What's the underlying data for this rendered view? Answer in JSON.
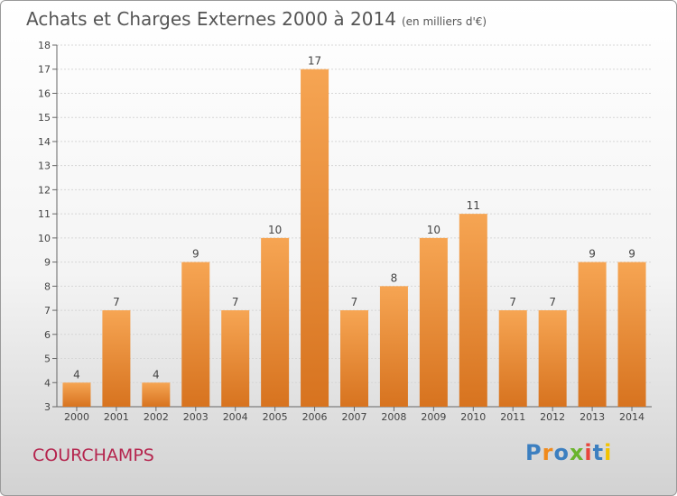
{
  "header": {
    "title": "Achats et Charges Externes 2000 à 2014",
    "subtitle": "(en milliers d'€)"
  },
  "footer": {
    "commune": "COURCHAMPS",
    "logo_letters": [
      "P",
      "r",
      "o",
      "x",
      "i",
      "t",
      "i"
    ]
  },
  "colors": {
    "bar_top": "#f6a553",
    "bar_bottom": "#d7731f",
    "commune": "#b5254e",
    "logo": [
      "#3c7fc0",
      "#f08a1c",
      "#3c7fc0",
      "#6ab42d",
      "#e8453c",
      "#3c7fc0",
      "#f2c300"
    ]
  },
  "chart_data": {
    "type": "bar",
    "title": "Achats et Charges Externes 2000 à 2014",
    "subtitle": "(en milliers d'€)",
    "categories": [
      "2000",
      "2001",
      "2002",
      "2003",
      "2004",
      "2005",
      "2006",
      "2007",
      "2008",
      "2009",
      "2010",
      "2011",
      "2012",
      "2013",
      "2014"
    ],
    "values": [
      4,
      7,
      4,
      9,
      7,
      10,
      17,
      7,
      8,
      10,
      11,
      7,
      7,
      9,
      9
    ],
    "ylim": [
      3,
      18
    ],
    "yticks": [
      3,
      4,
      5,
      6,
      7,
      8,
      9,
      10,
      11,
      12,
      13,
      14,
      15,
      16,
      17,
      18
    ],
    "grid": true,
    "data_labels": true
  }
}
